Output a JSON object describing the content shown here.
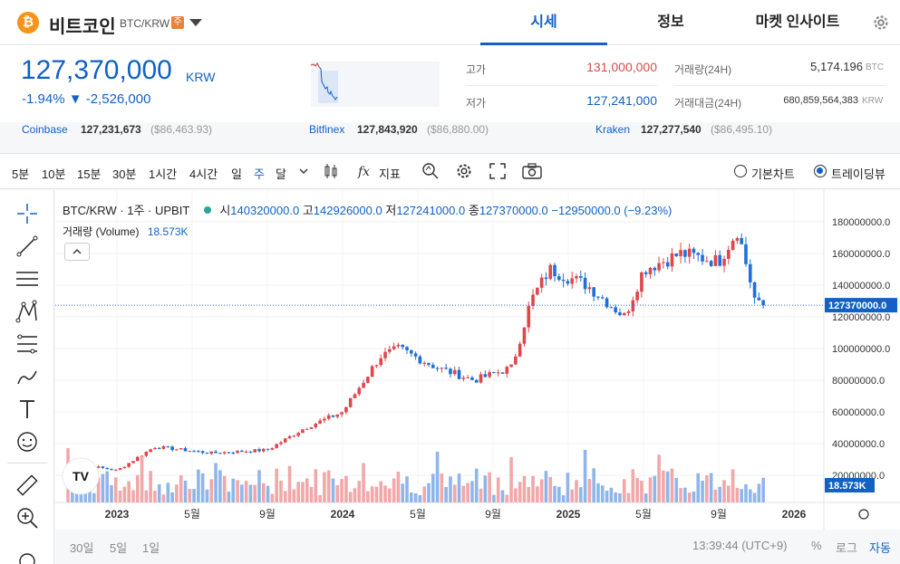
{
  "header": {
    "coin_symbol": "₿",
    "coin_name": "비트코인",
    "pair": "BTC/KRW",
    "warning_badge": "주",
    "tabs": [
      {
        "label": "시세",
        "active": true
      },
      {
        "label": "정보",
        "active": false
      },
      {
        "label": "마켓 인사이트",
        "active": false
      }
    ]
  },
  "summary": {
    "price": "127,370,000",
    "unit": "KRW",
    "change_pct": "-1.94%",
    "change_abs": "▼ -2,526,000",
    "high_label": "고가",
    "high_value": "131,000,000",
    "low_label": "저가",
    "low_value": "127,241,000",
    "volume_label": "거래량(24H)",
    "volume_value": "5,174.196",
    "volume_unit": "BTC",
    "amount_label": "거래대금(24H)",
    "amount_value": "680,859,564,383",
    "amount_unit": "KRW"
  },
  "exchanges": [
    {
      "name": "Coinbase",
      "price": "127,231,673",
      "usd": "($86,463.93)"
    },
    {
      "name": "Bitfinex",
      "price": "127,843,920",
      "usd": "($86,880.00)"
    },
    {
      "name": "Kraken",
      "price": "127,277,540",
      "usd": "($86,495.10)"
    }
  ],
  "toolbar": {
    "intervals": [
      "5분",
      "10분",
      "15분",
      "30분",
      "1시간",
      "4시간",
      "일",
      "주",
      "달"
    ],
    "selected_interval": "주",
    "indicator_label": "지표",
    "basic_chart": "기본차트",
    "trading_view": "트레이딩뷰"
  },
  "chart": {
    "symbol_line": "BTC/KRW · 1주 · UPBIT",
    "ohlc": {
      "open_label": "시",
      "open": "140320000.0",
      "high_label": "고",
      "high": "142926000.0",
      "low_label": "저",
      "low": "127241000.0",
      "close_label": "종",
      "close": "127370000.0",
      "change": "−12950000.0 (−9.23%)"
    },
    "volume_label": "거래량 (Volume)",
    "volume_value": "18.573K",
    "price_tag": "127370000.0",
    "volume_tag": "18.573K",
    "yticks": [
      "180000000.0",
      "160000000.0",
      "140000000.0",
      "120000000.0",
      "100000000.0",
      "80000000.0",
      "60000000.0",
      "40000000.0",
      "20000000.0"
    ],
    "xticks": [
      "2023",
      "5월",
      "9월",
      "2024",
      "5월",
      "9월",
      "2025",
      "5월",
      "9월",
      "2026"
    ],
    "watermark": "TV"
  },
  "chart_data": {
    "type": "candlestick",
    "y_range": [
      0,
      190000000
    ],
    "last_close": 127370000,
    "anchors_close": [
      [
        "2022-10",
        29000000
      ],
      [
        "2023-01",
        23000000
      ],
      [
        "2023-03",
        38000000
      ],
      [
        "2023-06",
        34000000
      ],
      [
        "2023-09",
        36000000
      ],
      [
        "2023-11",
        50000000
      ],
      [
        "2024-01",
        60000000
      ],
      [
        "2024-03",
        95000000
      ],
      [
        "2024-04",
        100000000
      ],
      [
        "2024-06",
        88000000
      ],
      [
        "2024-08",
        80000000
      ],
      [
        "2024-10",
        88000000
      ],
      [
        "2024-11",
        130000000
      ],
      [
        "2024-12",
        150000000
      ],
      [
        "2025-02",
        140000000
      ],
      [
        "2025-04",
        120000000
      ],
      [
        "2025-05",
        150000000
      ],
      [
        "2025-07",
        160000000
      ],
      [
        "2025-09",
        155000000
      ],
      [
        "2025-10",
        175000000
      ],
      [
        "2025-11",
        127370000
      ]
    ]
  },
  "bottom": {
    "ranges": [
      "30일",
      "5일",
      "1일"
    ],
    "time": "13:39:44 (UTC+9)",
    "percent": "%",
    "log": "로그",
    "auto": "자동"
  }
}
